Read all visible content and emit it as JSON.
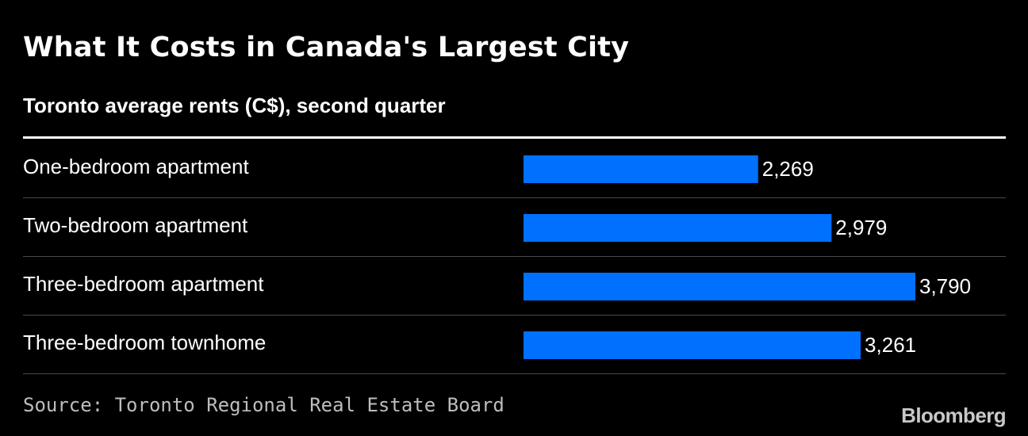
{
  "chart_data": {
    "type": "bar",
    "orientation": "horizontal",
    "title": "What It Costs in Canada's Largest City",
    "subtitle": "Toronto average rents (C$), second quarter",
    "categories": [
      "One-bedroom apartment",
      "Two-bedroom apartment",
      "Three-bedroom apartment",
      "Three-bedroom townhome"
    ],
    "values": [
      2269,
      2979,
      3790,
      3261
    ],
    "value_labels": [
      "2,269",
      "2,979",
      "3,790",
      "3,261"
    ],
    "xlim": [
      0,
      3790
    ],
    "grid": false,
    "bar_color": "#0070ff",
    "source": "Source: Toronto Regional Real Estate Board"
  },
  "brand": "Bloomberg",
  "colors": {
    "background": "#000000",
    "text": "#ffffff",
    "divider": "#4a4a4a"
  }
}
